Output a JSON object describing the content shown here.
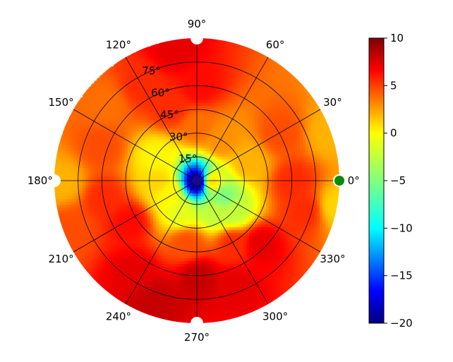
{
  "chart_data": {
    "type": "heatmap",
    "projection": "polar",
    "title": "",
    "azimuth_ticks": [
      {
        "deg": 0,
        "label": "0°"
      },
      {
        "deg": 30,
        "label": "30°"
      },
      {
        "deg": 60,
        "label": "60°"
      },
      {
        "deg": 90,
        "label": "90°"
      },
      {
        "deg": 120,
        "label": "120°"
      },
      {
        "deg": 150,
        "label": "150°"
      },
      {
        "deg": 180,
        "label": "180°"
      },
      {
        "deg": 210,
        "label": "210°"
      },
      {
        "deg": 240,
        "label": "240°"
      },
      {
        "deg": 270,
        "label": "270°"
      },
      {
        "deg": 300,
        "label": "300°"
      },
      {
        "deg": 330,
        "label": "330°"
      }
    ],
    "radial_range": [
      0,
      90
    ],
    "radial_ticks": [
      {
        "value": 15,
        "label": "15°"
      },
      {
        "value": 30,
        "label": "30°"
      },
      {
        "value": 45,
        "label": "45°"
      },
      {
        "value": 60,
        "label": "60°"
      },
      {
        "value": 75,
        "label": "75°"
      }
    ],
    "radial_label_angle_deg": 112.5,
    "grid": true,
    "colormap": "jet",
    "colorbar": {
      "position": "right",
      "range": [
        -20,
        10
      ],
      "ticks": [
        {
          "value": 10,
          "label": "10"
        },
        {
          "value": 5,
          "label": "5"
        },
        {
          "value": 0,
          "label": "0"
        },
        {
          "value": -5,
          "label": "−5"
        },
        {
          "value": -10,
          "label": "−10"
        },
        {
          "value": -15,
          "label": "−15"
        },
        {
          "value": -20,
          "label": "−20"
        }
      ]
    },
    "field_samples": [
      {
        "az": 0,
        "r": 0,
        "value": -20
      },
      {
        "az": 0,
        "r": 8,
        "value": 0
      },
      {
        "az": 330,
        "r": 18,
        "value": -5
      },
      {
        "az": 320,
        "r": 30,
        "value": -3
      },
      {
        "az": 300,
        "r": 22,
        "value": -3
      },
      {
        "az": 240,
        "r": 22,
        "value": -2
      },
      {
        "az": 200,
        "r": 20,
        "value": -1
      },
      {
        "az": 150,
        "r": 30,
        "value": -1
      },
      {
        "az": 180,
        "r": 25,
        "value": 0
      },
      {
        "az": 90,
        "r": 35,
        "value": 3
      },
      {
        "az": 60,
        "r": 30,
        "value": 2
      },
      {
        "az": 20,
        "r": 35,
        "value": 1
      },
      {
        "az": 110,
        "r": 50,
        "value": 5
      },
      {
        "az": 90,
        "r": 60,
        "value": 6
      },
      {
        "az": 100,
        "r": 85,
        "value": 7
      },
      {
        "az": 30,
        "r": 60,
        "value": 4
      },
      {
        "az": 0,
        "r": 60,
        "value": 5
      },
      {
        "az": 20,
        "r": 88,
        "value": 1
      },
      {
        "az": 350,
        "r": 88,
        "value": 0
      },
      {
        "az": 345,
        "r": 70,
        "value": 5
      },
      {
        "az": 315,
        "r": 55,
        "value": 7
      },
      {
        "az": 290,
        "r": 70,
        "value": 7
      },
      {
        "az": 270,
        "r": 60,
        "value": 8
      },
      {
        "az": 250,
        "r": 80,
        "value": 8
      },
      {
        "az": 235,
        "r": 70,
        "value": 7
      },
      {
        "az": 210,
        "r": 50,
        "value": 6
      },
      {
        "az": 190,
        "r": 60,
        "value": 5
      },
      {
        "az": 180,
        "r": 85,
        "value": 1
      },
      {
        "az": 160,
        "r": 65,
        "value": 4
      },
      {
        "az": 140,
        "r": 75,
        "value": 3
      },
      {
        "az": 120,
        "r": 70,
        "value": 5
      },
      {
        "az": 200,
        "r": 85,
        "value": 4
      },
      {
        "az": 300,
        "r": 45,
        "value": 5
      },
      {
        "az": 260,
        "r": 40,
        "value": 4
      }
    ],
    "markers": [
      {
        "az": 0,
        "r": 90,
        "color": "#0a8a0a",
        "ring": "#ffffff"
      },
      {
        "az": 90,
        "r": 90,
        "color": "#ffffff",
        "ring": "#ffffff"
      },
      {
        "az": 180,
        "r": 90,
        "color": "#ffffff",
        "ring": "#ffffff"
      },
      {
        "az": 270,
        "r": 90,
        "color": "#ffffff",
        "ring": "#ffffff"
      }
    ]
  }
}
